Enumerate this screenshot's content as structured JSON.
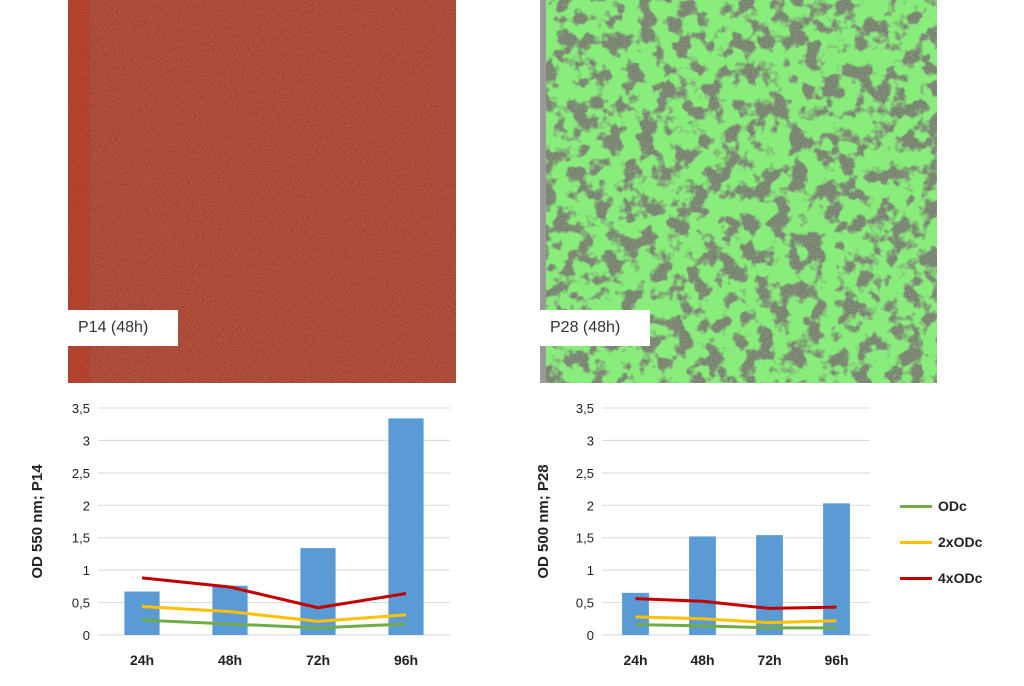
{
  "images": [
    {
      "label": "P14 (48h)",
      "tint": "#b02a16"
    },
    {
      "label": "P28 (48h)",
      "tint": "#3fb02a"
    }
  ],
  "legend": [
    {
      "name": "ODc",
      "color": "#70ad47"
    },
    {
      "name": "2xODc",
      "color": "#ffc000"
    },
    {
      "name": "4xODc",
      "color": "#c00000"
    }
  ],
  "chart_data": [
    {
      "type": "bar",
      "categories": [
        "24h",
        "48h",
        "72h",
        "96h"
      ],
      "values": [
        0.67,
        0.76,
        1.34,
        3.34
      ],
      "bar_color": "#5b9bd5",
      "lines": [
        {
          "name": "ODc",
          "values": [
            0.23,
            0.17,
            0.11,
            0.17
          ],
          "color": "#70ad47"
        },
        {
          "name": "2xODc",
          "values": [
            0.44,
            0.36,
            0.21,
            0.31
          ],
          "color": "#ffc000"
        },
        {
          "name": "4xODc",
          "values": [
            0.88,
            0.74,
            0.42,
            0.64
          ],
          "color": "#c00000"
        }
      ],
      "ylabel": "OD 550 nm;  P14",
      "ylim": [
        0,
        3.5
      ],
      "yticks": [
        "0",
        "0,5",
        "1",
        "1,5",
        "2",
        "2,5",
        "3",
        "3,5"
      ],
      "grid": true
    },
    {
      "type": "bar",
      "categories": [
        "24h",
        "48h",
        "72h",
        "96h"
      ],
      "values": [
        0.65,
        1.52,
        1.54,
        2.03
      ],
      "bar_color": "#5b9bd5",
      "lines": [
        {
          "name": "ODc",
          "values": [
            0.16,
            0.14,
            0.11,
            0.11
          ],
          "color": "#70ad47"
        },
        {
          "name": "2xODc",
          "values": [
            0.28,
            0.25,
            0.19,
            0.22
          ],
          "color": "#ffc000"
        },
        {
          "name": "4xODc",
          "values": [
            0.56,
            0.52,
            0.41,
            0.43
          ],
          "color": "#c00000"
        }
      ],
      "ylabel": "OD 500 nm; P28",
      "ylim": [
        0,
        3.5
      ],
      "yticks": [
        "0",
        "0,5",
        "1",
        "1,5",
        "2",
        "2,5",
        "3",
        "3,5"
      ],
      "grid": true
    }
  ]
}
